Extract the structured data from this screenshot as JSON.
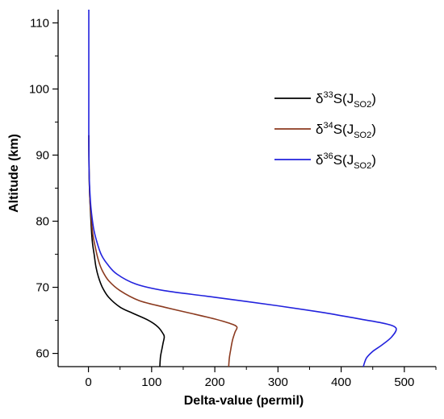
{
  "chart_data": {
    "type": "line",
    "xlabel": "Delta-value (permil)",
    "ylabel": "Altitude (km)",
    "xlim": [
      -48,
      550
    ],
    "ylim": [
      58,
      112
    ],
    "x_ticks": [
      0,
      100,
      200,
      300,
      400,
      500
    ],
    "y_ticks": [
      60,
      70,
      80,
      90,
      100,
      110
    ],
    "grid": false,
    "legend_position": "top-right",
    "series": [
      {
        "name": "δ33S(JSO2)",
        "delta": "δ",
        "superscript": "33",
        "species": "S",
        "sub": "SO2",
        "color": "#000000",
        "points": [
          [
            0.5,
            93
          ],
          [
            1,
            88
          ],
          [
            2,
            84
          ],
          [
            4,
            80
          ],
          [
            6,
            77
          ],
          [
            9,
            75
          ],
          [
            12,
            73
          ],
          [
            16,
            71.5
          ],
          [
            22,
            70
          ],
          [
            32,
            68.5
          ],
          [
            50,
            67
          ],
          [
            72,
            66
          ],
          [
            95,
            65
          ],
          [
            110,
            64
          ],
          [
            118,
            63
          ],
          [
            120,
            62.5
          ],
          [
            118,
            61.5
          ],
          [
            116,
            60.5
          ],
          [
            114,
            59.5
          ],
          [
            113,
            58
          ]
        ]
      },
      {
        "name": "δ34S(JSO2)",
        "delta": "δ",
        "superscript": "34",
        "species": "S",
        "sub": "SO2",
        "color": "#8B3A1F",
        "points": [
          [
            0.5,
            93
          ],
          [
            1,
            88
          ],
          [
            2,
            84
          ],
          [
            4,
            81
          ],
          [
            7,
            78
          ],
          [
            11,
            76
          ],
          [
            16,
            74
          ],
          [
            22,
            72.5
          ],
          [
            32,
            71
          ],
          [
            50,
            69.5
          ],
          [
            80,
            68
          ],
          [
            120,
            67
          ],
          [
            165,
            66
          ],
          [
            200,
            65.2
          ],
          [
            225,
            64.5
          ],
          [
            235,
            64
          ],
          [
            232,
            63.2
          ],
          [
            228,
            62
          ],
          [
            225,
            60.5
          ],
          [
            223,
            59.3
          ],
          [
            222,
            58
          ]
        ]
      },
      {
        "name": "δ36S(JSO2)",
        "delta": "δ",
        "superscript": "36",
        "species": "S",
        "sub": "SO2",
        "color": "#2222DD",
        "points": [
          [
            0.5,
            112
          ],
          [
            0.5,
            100
          ],
          [
            0.5,
            93
          ],
          [
            1,
            88
          ],
          [
            2,
            85
          ],
          [
            4,
            82
          ],
          [
            8,
            79
          ],
          [
            13,
            77
          ],
          [
            20,
            75
          ],
          [
            30,
            73.5
          ],
          [
            45,
            72
          ],
          [
            75,
            70.5
          ],
          [
            120,
            69.5
          ],
          [
            200,
            68.5
          ],
          [
            300,
            67.2
          ],
          [
            370,
            66.2
          ],
          [
            430,
            65.2
          ],
          [
            470,
            64.5
          ],
          [
            487,
            63.8
          ],
          [
            480,
            62.5
          ],
          [
            465,
            61.3
          ],
          [
            450,
            60.3
          ],
          [
            440,
            59.3
          ],
          [
            435,
            58
          ]
        ]
      }
    ]
  }
}
